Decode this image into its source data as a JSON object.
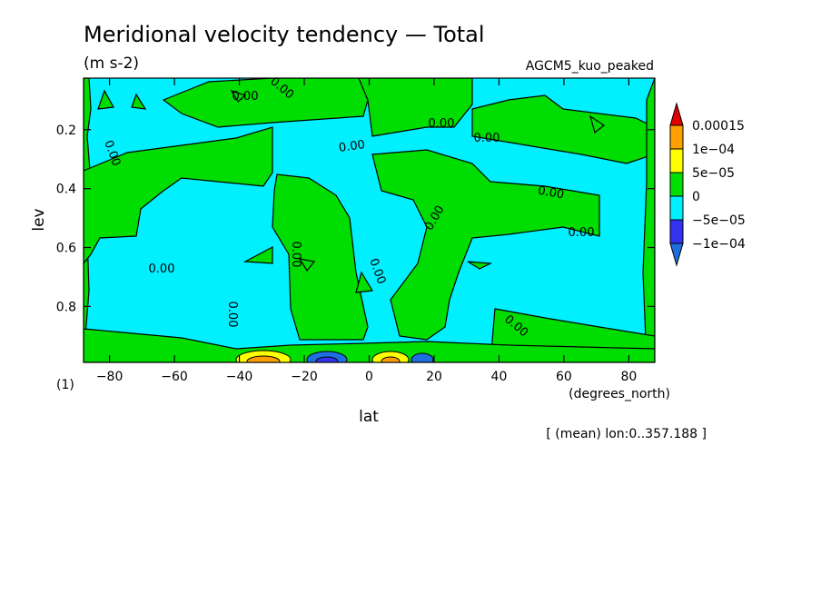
{
  "chart_data": {
    "type": "heatmap",
    "title": "Meridional velocity tendency — Total",
    "units": "(m s-2)",
    "dataset": "AGCM5_kuo_peaked",
    "xlabel": "lat",
    "xunits": "(degrees_north)",
    "ylabel": "lev",
    "yunits": "(1)",
    "note": "[ (mean) lon:0..357.188 ]",
    "xlim": [
      -88,
      88
    ],
    "ylim": [
      0.025,
      0.99
    ],
    "y_inverted": true,
    "xticks": [
      -80,
      -60,
      -40,
      -20,
      0,
      20,
      40,
      60,
      80
    ],
    "xtick_labels": [
      "−80",
      "−60",
      "−40",
      "−20",
      "0",
      "20",
      "40",
      "60",
      "80"
    ],
    "yticks": [
      0.2,
      0.4,
      0.6,
      0.8
    ],
    "ytick_labels": [
      "0.2",
      "0.4",
      "0.6",
      "0.8"
    ],
    "colorbar": {
      "levels": [
        -0.0001,
        -5e-05,
        0,
        5e-05,
        0.0001,
        0.00015
      ],
      "labels": [
        "−1e−04",
        "−5e−05",
        "0",
        "5e−05",
        "1e−04",
        "0.00015"
      ],
      "colors": [
        "#1e6fe0",
        "#3232f0",
        "#00f0ff",
        "#00dd00",
        "#ffff00",
        "#ffa000",
        "#e00000"
      ]
    },
    "contour_labels": [
      "0.00",
      "0.00",
      "0.00",
      "0.00",
      "0.00",
      "0.00",
      "0.00",
      "0.00",
      "0.00",
      "0.00",
      "0.00",
      "0.00",
      "0.00",
      "0.00"
    ],
    "regions": [
      {
        "sign": "positive",
        "lat": [
          -88,
          -80
        ],
        "lev": [
          0.03,
          0.99
        ]
      },
      {
        "sign": "negative",
        "lat": [
          -80,
          -50
        ],
        "lev": [
          0.03,
          0.32
        ]
      },
      {
        "sign": "positive",
        "lat": [
          -80,
          -30
        ],
        "lev": [
          0.32,
          0.5
        ]
      },
      {
        "sign": "negative",
        "lat": [
          -80,
          -30
        ],
        "lev": [
          0.5,
          0.92
        ]
      },
      {
        "sign": "positive",
        "lat": [
          -50,
          -5
        ],
        "lev": [
          0.03,
          0.28
        ]
      },
      {
        "sign": "negative",
        "lat": [
          -28,
          -3
        ],
        "lev": [
          0.28,
          0.55
        ]
      },
      {
        "sign": "positive",
        "lat": [
          -28,
          -5
        ],
        "lev": [
          0.45,
          0.9
        ]
      },
      {
        "sign": "negative",
        "lat": [
          -3,
          20
        ],
        "lev": [
          0.35,
          0.9
        ]
      },
      {
        "sign": "positive",
        "lat": [
          0,
          20
        ],
        "lev": [
          0.03,
          0.32
        ]
      },
      {
        "sign": "positive",
        "lat": [
          20,
          40
        ],
        "lev": [
          0.2,
          0.9
        ]
      },
      {
        "sign": "negative",
        "lat": [
          30,
          88
        ],
        "lev": [
          0.03,
          0.2
        ]
      },
      {
        "sign": "positive",
        "lat": [
          40,
          70
        ],
        "lev": [
          0.18,
          0.45
        ]
      },
      {
        "sign": "negative",
        "lat": [
          40,
          88
        ],
        "lev": [
          0.4,
          0.9
        ]
      },
      {
        "sign": "positive",
        "lat": [
          -88,
          88
        ],
        "lev": [
          0.9,
          0.99
        ]
      }
    ]
  }
}
